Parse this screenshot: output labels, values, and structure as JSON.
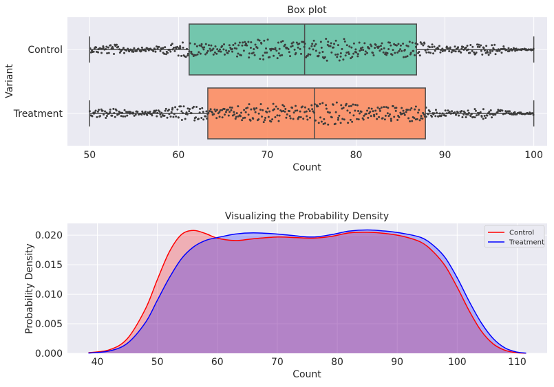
{
  "chart_data": [
    {
      "type": "box",
      "title": "Box plot",
      "xlabel": "Count",
      "ylabel": "Variant",
      "xlim": [
        47.5,
        101.5
      ],
      "xticks": [
        "50",
        "60",
        "70",
        "80",
        "90",
        "100"
      ],
      "grid": true,
      "categories": [
        "Control",
        "Treatment"
      ],
      "series": [
        {
          "name": "Control",
          "min": 50,
          "q1": 61.2,
          "median": 74.2,
          "q3": 86.8,
          "max": 100,
          "color": "#66c2a5"
        },
        {
          "name": "Treatment",
          "min": 50,
          "q1": 63.3,
          "median": 75.3,
          "q3": 87.8,
          "max": 100,
          "color": "#fc8d62"
        }
      ],
      "overlay": "swarm of individual observations (dark grey points) spanning 50 to 100"
    },
    {
      "type": "area",
      "title": "Visualizing the Probability Density",
      "xlabel": "Count",
      "ylabel": "Probability Density",
      "xlim": [
        35,
        115
      ],
      "ylim": [
        0,
        0.022
      ],
      "xticks": [
        "40",
        "50",
        "60",
        "70",
        "80",
        "90",
        "100",
        "110"
      ],
      "yticks": [
        "0.000",
        "0.005",
        "0.010",
        "0.015",
        "0.020"
      ],
      "grid": true,
      "legend": "top-right",
      "x": [
        38.5,
        42,
        45,
        48,
        50,
        52,
        54,
        56,
        58,
        60,
        63,
        66,
        70,
        73,
        76,
        79,
        82,
        85,
        88,
        91,
        94,
        96,
        98,
        100,
        102,
        104,
        106,
        108,
        110,
        111.5
      ],
      "series": [
        {
          "name": "Control",
          "color": "#ff0000",
          "values": [
            0.0001,
            0.0006,
            0.0025,
            0.0075,
            0.0125,
            0.0172,
            0.0201,
            0.0208,
            0.0203,
            0.0195,
            0.0191,
            0.0194,
            0.0197,
            0.0196,
            0.0195,
            0.0198,
            0.0204,
            0.0205,
            0.0203,
            0.0198,
            0.0188,
            0.0172,
            0.0148,
            0.0112,
            0.0072,
            0.0038,
            0.0016,
            0.0005,
            0.0001,
            3e-05
          ]
        },
        {
          "name": "Treatment",
          "color": "#0000ff",
          "values": [
            5e-05,
            0.0004,
            0.0017,
            0.0052,
            0.009,
            0.0128,
            0.016,
            0.018,
            0.0191,
            0.0196,
            0.0202,
            0.0204,
            0.0202,
            0.0199,
            0.0197,
            0.0201,
            0.0207,
            0.0209,
            0.0207,
            0.0203,
            0.0196,
            0.0183,
            0.0162,
            0.0128,
            0.0088,
            0.0052,
            0.0025,
            0.0009,
            0.0002,
            5e-05
          ]
        }
      ]
    }
  ]
}
